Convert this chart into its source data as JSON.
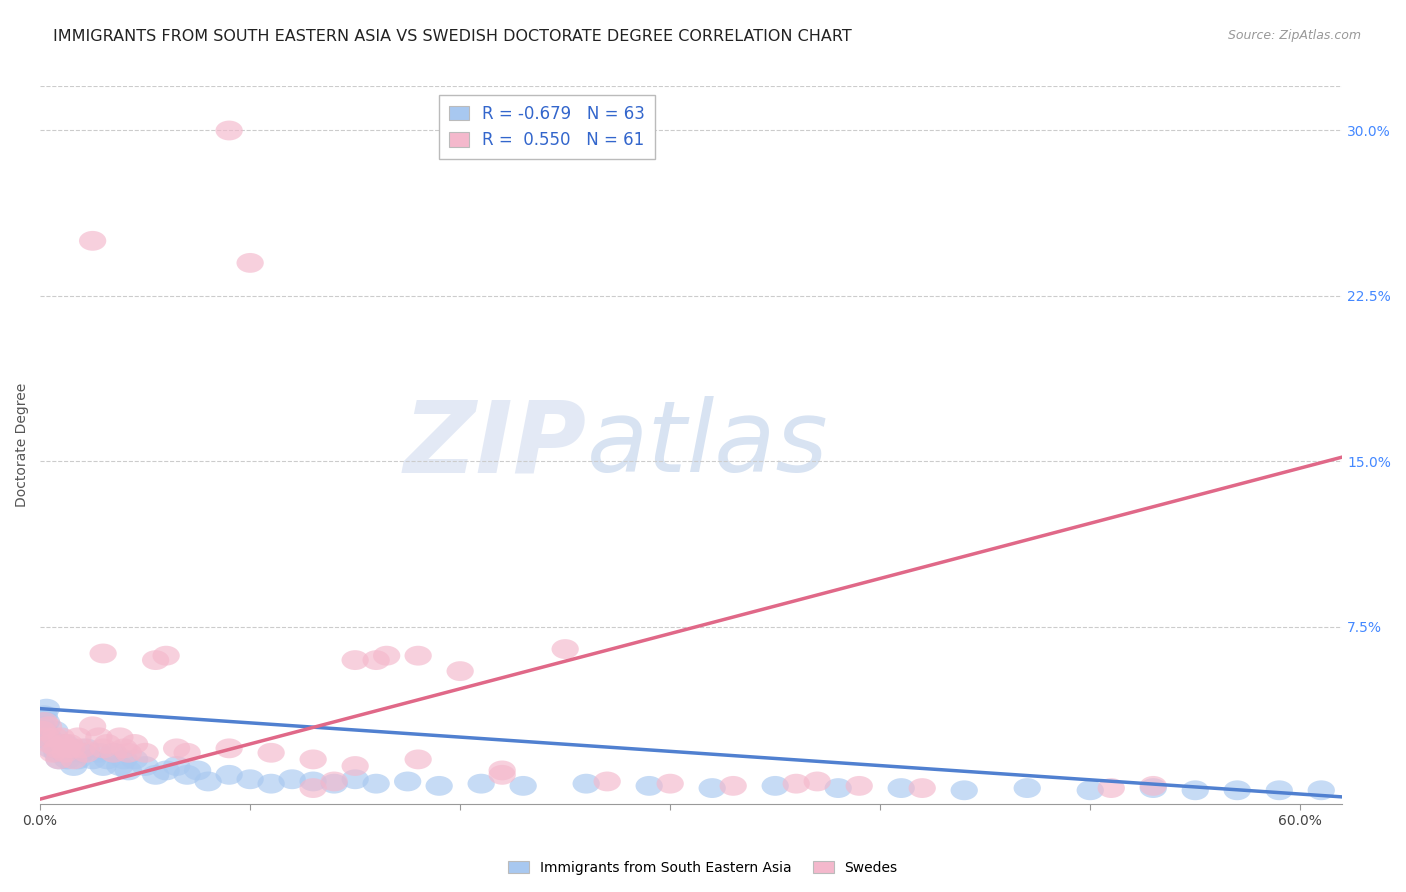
{
  "title": "IMMIGRANTS FROM SOUTH EASTERN ASIA VS SWEDISH DOCTORATE DEGREE CORRELATION CHART",
  "source": "Source: ZipAtlas.com",
  "ylabel": "Doctorate Degree",
  "xlim": [
    0.0,
    0.62
  ],
  "ylim": [
    -0.005,
    0.32
  ],
  "ytick_right": [
    0.075,
    0.15,
    0.225,
    0.3
  ],
  "ytick_right_labels": [
    "7.5%",
    "15.0%",
    "22.5%",
    "30.0%"
  ],
  "blue_color": "#a8c8f0",
  "pink_color": "#f4b8cc",
  "blue_line_color": "#5080d0",
  "pink_line_color": "#e06888",
  "legend_r1": "R = -0.679",
  "legend_n1": "N = 63",
  "legend_r2": "R =  0.550",
  "legend_n2": "N = 61",
  "watermark_zip": "ZIP",
  "watermark_atlas": "atlas",
  "label1": "Immigrants from South Eastern Asia",
  "label2": "Swedes",
  "blue_line_x": [
    0.0,
    0.62
  ],
  "blue_line_y": [
    0.038,
    -0.002
  ],
  "pink_line_x": [
    0.0,
    0.62
  ],
  "pink_line_y": [
    -0.003,
    0.152
  ],
  "title_fontsize": 11.5,
  "tick_fontsize": 10,
  "legend_fontsize": 12,
  "right_tick_color": "#4488ff",
  "blue_pts_x": [
    0.001,
    0.002,
    0.003,
    0.004,
    0.005,
    0.006,
    0.007,
    0.008,
    0.009,
    0.01,
    0.011,
    0.012,
    0.013,
    0.014,
    0.015,
    0.016,
    0.018,
    0.02,
    0.022,
    0.025,
    0.028,
    0.03,
    0.032,
    0.035,
    0.038,
    0.04,
    0.042,
    0.045,
    0.05,
    0.055,
    0.06,
    0.065,
    0.07,
    0.075,
    0.08,
    0.09,
    0.1,
    0.11,
    0.12,
    0.13,
    0.14,
    0.15,
    0.16,
    0.175,
    0.19,
    0.21,
    0.23,
    0.26,
    0.29,
    0.32,
    0.35,
    0.38,
    0.41,
    0.44,
    0.47,
    0.5,
    0.53,
    0.55,
    0.57,
    0.59,
    0.61,
    0.002,
    0.003
  ],
  "blue_pts_y": [
    0.03,
    0.028,
    0.032,
    0.025,
    0.02,
    0.022,
    0.028,
    0.018,
    0.015,
    0.02,
    0.018,
    0.022,
    0.015,
    0.018,
    0.02,
    0.012,
    0.015,
    0.018,
    0.02,
    0.015,
    0.018,
    0.012,
    0.015,
    0.018,
    0.012,
    0.015,
    0.01,
    0.015,
    0.012,
    0.008,
    0.01,
    0.012,
    0.008,
    0.01,
    0.005,
    0.008,
    0.006,
    0.004,
    0.006,
    0.005,
    0.004,
    0.006,
    0.004,
    0.005,
    0.003,
    0.004,
    0.003,
    0.004,
    0.003,
    0.002,
    0.003,
    0.002,
    0.002,
    0.001,
    0.002,
    0.001,
    0.002,
    0.001,
    0.001,
    0.001,
    0.001,
    0.035,
    0.038
  ],
  "pink_pts_x": [
    0.001,
    0.002,
    0.003,
    0.004,
    0.005,
    0.006,
    0.007,
    0.008,
    0.009,
    0.01,
    0.011,
    0.012,
    0.013,
    0.014,
    0.015,
    0.016,
    0.018,
    0.02,
    0.022,
    0.025,
    0.028,
    0.03,
    0.032,
    0.035,
    0.038,
    0.04,
    0.042,
    0.045,
    0.05,
    0.055,
    0.06,
    0.065,
    0.07,
    0.09,
    0.11,
    0.13,
    0.15,
    0.18,
    0.22,
    0.27,
    0.3,
    0.33,
    0.36,
    0.39,
    0.42,
    0.15,
    0.18,
    0.2,
    0.22,
    0.25,
    0.03,
    0.025,
    0.09,
    0.1,
    0.13,
    0.14,
    0.16,
    0.165,
    0.37,
    0.51,
    0.53
  ],
  "pink_pts_y": [
    0.028,
    0.032,
    0.025,
    0.03,
    0.022,
    0.018,
    0.025,
    0.02,
    0.015,
    0.025,
    0.022,
    0.018,
    0.02,
    0.022,
    0.02,
    0.015,
    0.025,
    0.02,
    0.018,
    0.03,
    0.025,
    0.02,
    0.022,
    0.018,
    0.025,
    0.02,
    0.018,
    0.022,
    0.018,
    0.06,
    0.062,
    0.02,
    0.018,
    0.02,
    0.018,
    0.015,
    0.012,
    0.015,
    0.01,
    0.005,
    0.004,
    0.003,
    0.004,
    0.003,
    0.002,
    0.06,
    0.062,
    0.055,
    0.008,
    0.065,
    0.063,
    0.25,
    0.3,
    0.24,
    0.002,
    0.005,
    0.06,
    0.062,
    0.005,
    0.002,
    0.003
  ]
}
